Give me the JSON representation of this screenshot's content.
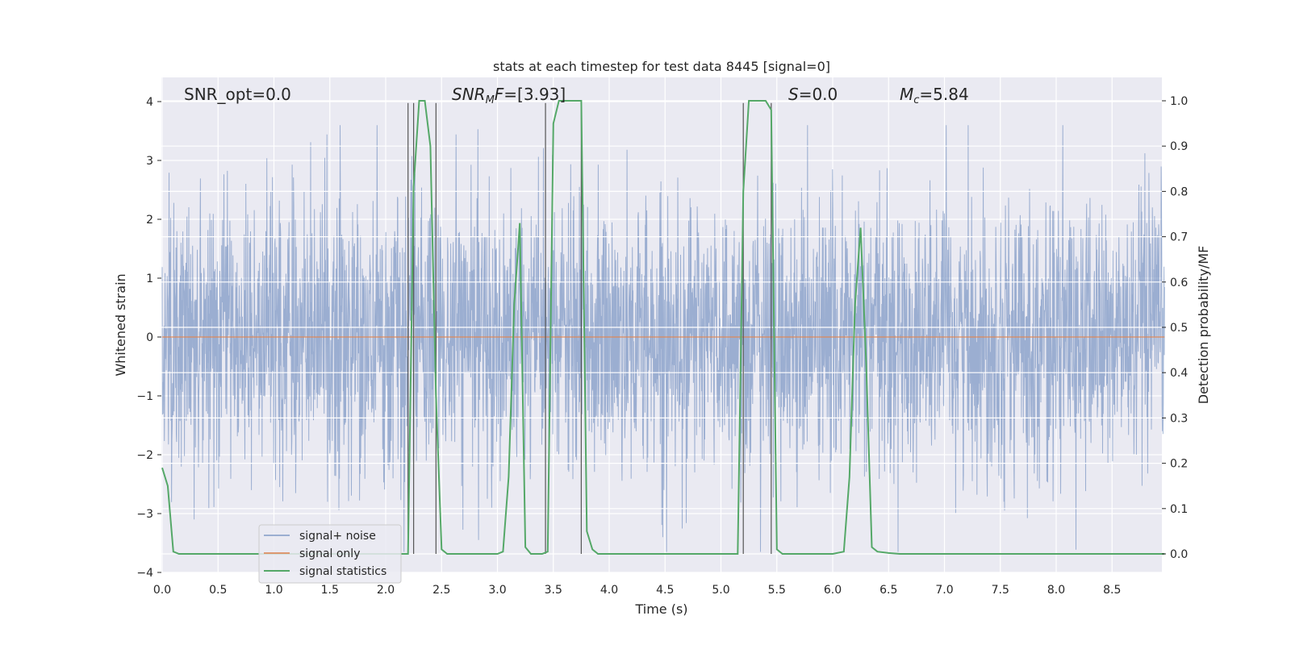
{
  "chart_data": {
    "type": "line",
    "title": "stats at each timestep for test data 8445 [signal=0]",
    "xlabel": "Time (s)",
    "ylabel": "Whitened strain",
    "y2label": "Detection probability/MF",
    "xlim": [
      0.0,
      9.0
    ],
    "ylim": [
      -4.0,
      4.0
    ],
    "y2lim": [
      0.0,
      1.0
    ],
    "xticks": [
      "0.0",
      "0.5",
      "1.0",
      "1.5",
      "2.0",
      "2.5",
      "3.0",
      "3.5",
      "4.0",
      "4.5",
      "5.0",
      "5.5",
      "6.0",
      "6.5",
      "7.0",
      "7.5",
      "8.0",
      "8.5"
    ],
    "yticks": [
      "4",
      "3",
      "2",
      "1",
      "0",
      "−1",
      "−2",
      "−3",
      "−4"
    ],
    "y2ticks": [
      "1.0",
      "0.9",
      "0.8",
      "0.7",
      "0.6",
      "0.5",
      "0.4",
      "0.3",
      "0.2",
      "0.1",
      "0.0"
    ],
    "grid": true,
    "legend_position": "lower-left",
    "annotations": {
      "snr_opt": "SNR_opt=0.0",
      "snr_mf_sym": "SNR",
      "snr_mf_sub": "M",
      "snr_mf_f": "F",
      "snr_mf_val": "=[3.93]",
      "s_sym": "S",
      "s_val": "=0.0",
      "mc_sym": "M",
      "mc_sub": "c",
      "mc_val": "=5.84"
    },
    "series": [
      {
        "name": "signal+ noise",
        "color": "#4c72b0",
        "axis": "left",
        "description_level": "noise spanning roughly -3.6 to 3.6"
      },
      {
        "name": "signal only",
        "color": "#dd8452",
        "axis": "left",
        "x": [
          0.0,
          9.0
        ],
        "y": [
          0.0,
          0.0
        ]
      },
      {
        "name": "signal statistics",
        "color": "#55a868",
        "axis": "right",
        "x": [
          0.0,
          0.05,
          0.1,
          0.15,
          2.0,
          2.17,
          2.2,
          2.25,
          2.3,
          2.35,
          2.4,
          2.45,
          2.5,
          2.55,
          3.0,
          3.05,
          3.1,
          3.15,
          3.2,
          3.25,
          3.3,
          3.4,
          3.45,
          3.5,
          3.55,
          3.6,
          3.7,
          3.75,
          3.8,
          3.85,
          3.9,
          5.0,
          5.15,
          5.2,
          5.25,
          5.3,
          5.35,
          5.4,
          5.45,
          5.5,
          5.55,
          5.6,
          6.0,
          6.1,
          6.15,
          6.2,
          6.25,
          6.3,
          6.35,
          6.4,
          6.5,
          6.6,
          9.0
        ],
        "y": [
          0.19,
          0.15,
          0.005,
          0.0,
          0.0,
          0.0,
          0.0,
          0.81,
          1.0,
          1.0,
          0.9,
          0.35,
          0.01,
          0.0,
          0.0,
          0.005,
          0.17,
          0.55,
          0.73,
          0.015,
          0.0,
          0.0,
          0.005,
          0.95,
          1.0,
          1.0,
          1.0,
          1.0,
          0.05,
          0.01,
          0.0,
          0.0,
          0.0,
          0.8,
          1.0,
          1.0,
          1.0,
          1.0,
          0.98,
          0.01,
          0.0,
          0.0,
          0.0,
          0.005,
          0.17,
          0.55,
          0.72,
          0.42,
          0.015,
          0.005,
          0.002,
          0.0,
          0.0
        ]
      }
    ],
    "vertical_markers": [
      {
        "x": 2.2,
        "y_top": 0.995
      },
      {
        "x": 2.25,
        "y_top": 0.995
      },
      {
        "x": 2.45,
        "y_top": 0.995
      },
      {
        "x": 3.43,
        "y_top": 0.995
      },
      {
        "x": 3.75,
        "y_top": 0.995
      },
      {
        "x": 5.2,
        "y_top": 0.995
      },
      {
        "x": 5.45,
        "y_top": 0.995
      }
    ]
  }
}
